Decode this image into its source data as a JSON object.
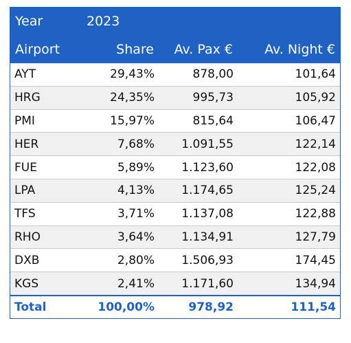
{
  "table": {
    "header": [
      [
        "Year",
        "2023",
        "",
        ""
      ],
      [
        "Airport",
        "Share",
        "Av. Pax €",
        "Av. Night €"
      ]
    ],
    "rows": [
      [
        "AYT",
        "29,43%",
        "878,00",
        "101,64"
      ],
      [
        "HRG",
        "24,35%",
        "995,73",
        "105,92"
      ],
      [
        "PMI",
        "15,97%",
        "815,64",
        "106,47"
      ],
      [
        "HER",
        "7,68%",
        "1.091,55",
        "122,14"
      ],
      [
        "FUE",
        "5,89%",
        "1.123,60",
        "122,08"
      ],
      [
        "LPA",
        "4,13%",
        "1.174,65",
        "125,24"
      ],
      [
        "TFS",
        "3,71%",
        "1.137,08",
        "122,88"
      ],
      [
        "RHO",
        "3,64%",
        "1.134,91",
        "127,79"
      ],
      [
        "DXB",
        "2,80%",
        "1.506,93",
        "174,45"
      ],
      [
        "KGS",
        "2,41%",
        "1.171,60",
        "134,94"
      ]
    ],
    "total": [
      "Total",
      "100,00%",
      "978,92",
      "111,54"
    ]
  }
}
